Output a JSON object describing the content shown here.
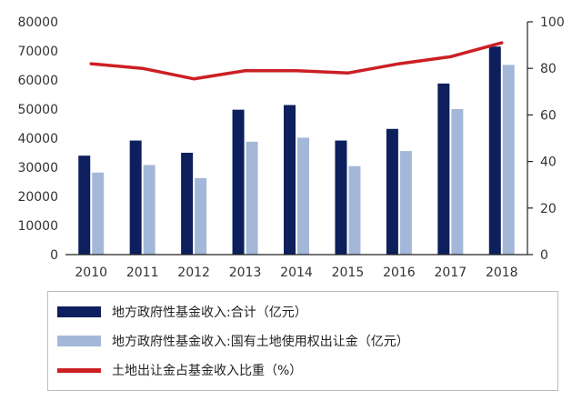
{
  "chart_data": {
    "type": "bar",
    "categories": [
      "2010",
      "2011",
      "2012",
      "2013",
      "2014",
      "2015",
      "2016",
      "2017",
      "2018"
    ],
    "series": [
      {
        "name": "地方政府性基金收入:合计（亿元）",
        "type": "bar",
        "axis": "left",
        "color": "#0d1f5c",
        "values": [
          34000,
          39200,
          35000,
          49800,
          51400,
          39200,
          43200,
          58800,
          71500
        ]
      },
      {
        "name": "地方政府性基金收入:国有土地使用权出让金（亿元）",
        "type": "bar",
        "axis": "left",
        "color": "#a3b8d8",
        "values": [
          28200,
          30800,
          26300,
          38800,
          40200,
          30400,
          35600,
          50000,
          65200
        ]
      },
      {
        "name": "土地出让金占基金收入比重（%）",
        "type": "line",
        "axis": "right",
        "color": "#cc1f24",
        "values": [
          82,
          80,
          75.5,
          79,
          79,
          78,
          82,
          85,
          91
        ]
      }
    ],
    "y_left": {
      "ylim": [
        0,
        80000
      ],
      "ticks": [
        0,
        10000,
        20000,
        30000,
        40000,
        50000,
        60000,
        70000,
        80000
      ]
    },
    "y_right": {
      "ylim": [
        0,
        100
      ],
      "ticks": [
        0,
        20,
        40,
        60,
        80,
        100
      ]
    },
    "legend_position": "bottom",
    "grid": false
  }
}
